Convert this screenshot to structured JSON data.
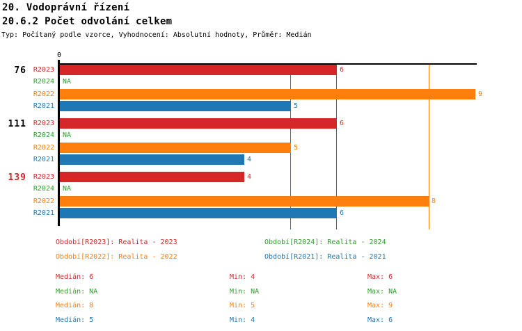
{
  "header": {
    "title": "20. Vodoprávní řízení",
    "subtitle": "20.6.2 Počet odvolání celkem",
    "meta": "Typ: Počítaný podle vzorce, Vyhodnocení: Absolutní hodnoty, Průměr: Medián"
  },
  "colors": {
    "R2023": "#d62728",
    "R2024": "#2ca02c",
    "R2022": "#ff7f0e",
    "R2021": "#1f77b4",
    "axis": "#000000",
    "group_label_default": "#000000",
    "group_label_alert": "#d62728"
  },
  "chart_data": {
    "type": "bar",
    "orientation": "horizontal",
    "title": "20.6.2 Počet odvolání celkem",
    "x_axis": {
      "tick_labels": [
        "0"
      ],
      "min": 0,
      "max": 9,
      "grid": false
    },
    "na_text": "NA",
    "series_order": [
      "R2023",
      "R2024",
      "R2022",
      "R2021"
    ],
    "groups": [
      {
        "label": "76",
        "label_color": "#000000",
        "values": {
          "R2023": 6,
          "R2024": null,
          "R2022": 9,
          "R2021": 5
        }
      },
      {
        "label": "111",
        "label_color": "#000000",
        "values": {
          "R2023": 6,
          "R2024": null,
          "R2022": 5,
          "R2021": 4
        }
      },
      {
        "label": "139",
        "label_color": "#d62728",
        "values": {
          "R2023": 4,
          "R2024": null,
          "R2022": 8,
          "R2021": 6
        }
      }
    ],
    "median_lines": {
      "R2023": 6,
      "R2022": 8,
      "R2021": 5
    }
  },
  "legend": {
    "entries": [
      {
        "series": "R2023",
        "name": "Období[R2023]",
        "value": "Realita - 2023"
      },
      {
        "series": "R2024",
        "name": "Období[R2024]",
        "value": "Realita - 2024"
      },
      {
        "series": "R2022",
        "name": "Období[R2022]",
        "value": "Realita - 2022"
      },
      {
        "series": "R2021",
        "name": "Období[R2021]",
        "value": "Realita - 2021"
      }
    ]
  },
  "stats": {
    "columns": [
      "Medián",
      "Min",
      "Max"
    ],
    "rows": [
      {
        "series": "R2023",
        "values": [
          "6",
          "4",
          "6"
        ]
      },
      {
        "series": "R2024",
        "values": [
          "NA",
          "NA",
          "NA"
        ]
      },
      {
        "series": "R2022",
        "values": [
          "8",
          "5",
          "9"
        ]
      },
      {
        "series": "R2021",
        "values": [
          "5",
          "4",
          "6"
        ]
      }
    ]
  }
}
